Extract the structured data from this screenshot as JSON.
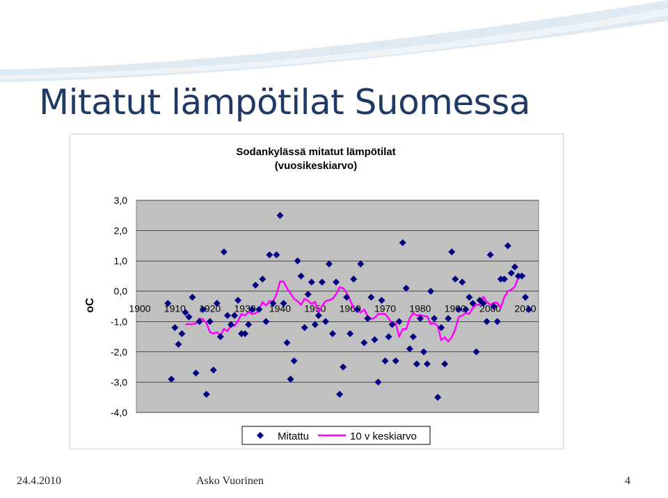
{
  "slide": {
    "title": "Mitatut lämpötilat Suomessa",
    "footer_date": "24.4.2010",
    "footer_author": "Asko Vuorinen",
    "page_number": "4"
  },
  "colors": {
    "title": "#1f3864",
    "plot_bg": "#c0c0c0",
    "marker": "#000080",
    "line": "#ff00ff",
    "swoosh": "#d7e3ef"
  },
  "chart_data": {
    "type": "scatter",
    "title": "Sodankylässä mitatut lämpötilat",
    "subtitle": "(vuosikeskiarvo)",
    "ylabel": "oC",
    "xlabel": "",
    "xlim": [
      1900,
      2010
    ],
    "ylim": [
      -4,
      3
    ],
    "xticks": [
      "1900",
      "1910",
      "1920",
      "1930",
      "1940",
      "1950",
      "1960",
      "1970",
      "1980",
      "1990",
      "2000",
      "2010"
    ],
    "yticks": [
      "3,0",
      "2,0",
      "1,0",
      "0,0",
      "-1,0",
      "-2,0",
      "-3,0",
      "-4,0"
    ],
    "grid": "horizontal",
    "legend": "bottom",
    "series": [
      {
        "name": "Mitattu",
        "marker": "diamond",
        "x": [
          1908,
          1909,
          1910,
          1911,
          1912,
          1913,
          1914,
          1915,
          1916,
          1917,
          1918,
          1919,
          1920,
          1921,
          1922,
          1923,
          1924,
          1925,
          1926,
          1927,
          1928,
          1929,
          1930,
          1931,
          1932,
          1933,
          1934,
          1935,
          1936,
          1937,
          1938,
          1939,
          1940,
          1941,
          1942,
          1943,
          1944,
          1945,
          1946,
          1947,
          1948,
          1949,
          1950,
          1951,
          1952,
          1953,
          1954,
          1955,
          1956,
          1957,
          1958,
          1959,
          1960,
          1961,
          1962,
          1963,
          1964,
          1965,
          1966,
          1967,
          1968,
          1969,
          1970,
          1971,
          1972,
          1973,
          1974,
          1975,
          1976,
          1977,
          1978,
          1979,
          1980,
          1981,
          1982,
          1983,
          1984,
          1985,
          1986,
          1987,
          1988,
          1989,
          1990,
          1991,
          1992,
          1993,
          1994,
          1995,
          1996,
          1997,
          1998,
          1999,
          2000,
          2001,
          2002,
          2003,
          2004,
          2005,
          2006,
          2007,
          2008,
          2009,
          2010,
          2011
        ],
        "y": [
          -0.4,
          -2.9,
          -1.2,
          -1.75,
          -1.4,
          -0.7,
          -0.85,
          -0.2,
          -2.7,
          -1.0,
          -0.6,
          -3.4,
          -1.0,
          -2.6,
          -0.4,
          -1.5,
          1.3,
          -0.8,
          -1.1,
          -0.8,
          -0.3,
          -1.4,
          -1.4,
          -1.1,
          -0.6,
          0.2,
          -0.6,
          0.4,
          -1.0,
          1.2,
          -0.4,
          1.2,
          2.5,
          -0.4,
          -1.7,
          -2.9,
          -2.3,
          1.0,
          0.5,
          -1.2,
          -0.1,
          0.3,
          -1.1,
          -0.8,
          0.3,
          -1.0,
          0.9,
          -1.4,
          0.3,
          -3.4,
          -2.5,
          -0.2,
          -1.4,
          0.4,
          -0.6,
          0.9,
          -1.7,
          -0.9,
          -0.2,
          -1.6,
          -3.0,
          -0.3,
          -2.3,
          -1.5,
          -1.1,
          -2.3,
          -1.0,
          1.6,
          0.1,
          -1.9,
          -1.5,
          -2.4,
          -0.9,
          -2.0,
          -2.4,
          0.0,
          -0.9,
          -3.5,
          -1.2,
          -2.4,
          -0.9,
          1.3,
          0.4,
          -0.6,
          0.3,
          -0.6,
          -0.2,
          -0.4,
          -2.0,
          -0.3,
          -0.4,
          -1.0,
          1.2,
          -0.5,
          -1.0,
          0.4,
          0.4,
          1.5,
          0.6,
          0.8,
          0.5,
          0.5,
          -0.2,
          -0.6
        ]
      },
      {
        "name": "10 v keskiarvo",
        "marker": "line",
        "x": [
          1913,
          1914,
          1915,
          1916,
          1917,
          1918,
          1919,
          1920,
          1921,
          1922,
          1923,
          1924,
          1925,
          1926,
          1927,
          1928,
          1929,
          1930,
          1931,
          1932,
          1933,
          1934,
          1935,
          1936,
          1937,
          1938,
          1939,
          1940,
          1941,
          1942,
          1943,
          1944,
          1945,
          1946,
          1947,
          1948,
          1949,
          1950,
          1951,
          1952,
          1953,
          1954,
          1955,
          1956,
          1957,
          1958,
          1959,
          1960,
          1961,
          1962,
          1963,
          1964,
          1965,
          1966,
          1967,
          1968,
          1969,
          1970,
          1971,
          1972,
          1973,
          1974,
          1975,
          1976,
          1977,
          1978,
          1979,
          1980,
          1981,
          1982,
          1983,
          1984,
          1985,
          1986,
          1987,
          1988,
          1989,
          1990,
          1991,
          1992,
          1993,
          1994,
          1995,
          1996,
          1997,
          1998,
          1999,
          2000,
          2001,
          2002,
          2003,
          2004,
          2005,
          2006,
          2007,
          2008,
          2009,
          2010
        ],
        "y": [
          -1.1,
          -1.08,
          -1.09,
          -1.06,
          -0.9,
          -0.93,
          -1.05,
          -1.35,
          -1.4,
          -1.35,
          -1.46,
          -1.24,
          -1.32,
          -1.12,
          -1.15,
          -0.98,
          -0.75,
          -0.8,
          -0.68,
          -0.75,
          -0.73,
          -0.62,
          -0.35,
          -0.48,
          -0.32,
          -0.34,
          -0.1,
          0.32,
          0.32,
          0.1,
          -0.07,
          -0.25,
          -0.33,
          -0.45,
          -0.25,
          -0.32,
          -0.42,
          -0.35,
          -0.7,
          -0.48,
          -0.33,
          -0.3,
          -0.25,
          -0.1,
          0.13,
          0.1,
          -0.05,
          -0.3,
          -0.55,
          -0.65,
          -0.7,
          -0.6,
          -0.82,
          -0.92,
          -0.88,
          -0.75,
          -0.75,
          -0.75,
          -0.9,
          -1.1,
          -1.05,
          -1.5,
          -1.25,
          -1.25,
          -0.9,
          -0.72,
          -0.8,
          -0.78,
          -0.82,
          -0.83,
          -1.08,
          -1.05,
          -1.15,
          -1.62,
          -1.52,
          -1.66,
          -1.52,
          -1.25,
          -0.85,
          -0.8,
          -0.72,
          -0.75,
          -0.55,
          -0.45,
          -0.45,
          -0.18,
          -0.35,
          -0.45,
          -0.38,
          -0.38,
          -0.55,
          -0.2,
          0.0,
          0.05,
          0.15,
          0.45,
          0.5,
          0.53
        ]
      }
    ]
  }
}
